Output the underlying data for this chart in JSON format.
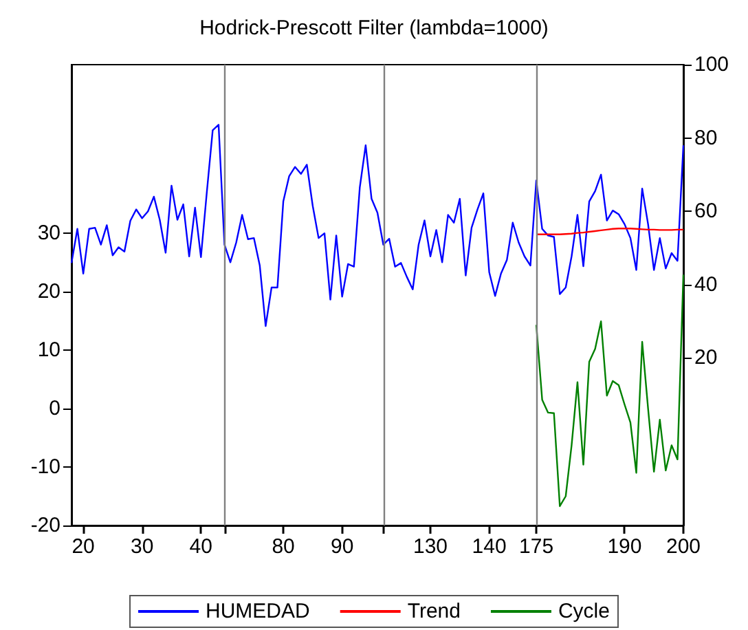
{
  "chart_data": {
    "type": "line",
    "title": "Hodrick-Prescott Filter (lambda=1000)",
    "categories": [
      null,
      null,
      "20",
      null,
      null,
      null,
      null,
      null,
      null,
      null,
      null,
      null,
      "30",
      null,
      null,
      null,
      null,
      null,
      null,
      null,
      null,
      null,
      "40",
      null,
      null,
      null,
      null,
      null,
      null,
      null,
      null,
      null,
      null,
      null,
      null,
      null,
      "80",
      null,
      null,
      null,
      null,
      null,
      null,
      null,
      null,
      null,
      "90",
      null,
      null,
      null,
      null,
      null,
      null,
      null,
      null,
      null,
      null,
      null,
      null,
      null,
      null,
      "130",
      null,
      null,
      null,
      null,
      null,
      null,
      null,
      null,
      null,
      "140",
      null,
      null,
      null,
      null,
      null,
      null,
      null,
      "175",
      null,
      null,
      null,
      null,
      null,
      null,
      null,
      null,
      null,
      null,
      null,
      null,
      null,
      null,
      "190",
      null,
      null,
      null,
      null,
      null,
      null,
      null,
      null,
      null,
      "200"
    ],
    "series": [
      {
        "name": "HUMEDAD",
        "color": "#0000ff",
        "axis": "y2",
        "values": [
          45.9,
          55.2,
          43.0,
          55.2,
          55.5,
          50.9,
          56.2,
          48.0,
          50.2,
          49.0,
          57.4,
          60.5,
          58.1,
          60.0,
          64.0,
          57.7,
          48.7,
          67.0,
          57.7,
          61.9,
          47.7,
          61.0,
          47.5,
          65.2,
          82.1,
          83.6,
          50.9,
          46.1,
          51.5,
          59.0,
          52.4,
          52.7,
          45.2,
          28.7,
          39.2,
          39.2,
          62.7,
          69.6,
          72.1,
          70.2,
          72.7,
          61.5,
          52.7,
          54.0,
          35.9,
          53.4,
          36.7,
          45.6,
          44.9,
          66.5,
          78.0,
          63.4,
          59.6,
          50.9,
          52.5,
          44.9,
          45.9,
          42.1,
          38.7,
          50.9,
          57.5,
          47.7,
          54.9,
          46.1,
          59.0,
          56.9,
          63.4,
          42.5,
          55.5,
          60.5,
          64.9,
          43.4,
          36.9,
          43.0,
          46.7,
          56.9,
          51.5,
          47.7,
          45.2,
          68.4,
          55.2,
          53.4,
          53.0,
          37.4,
          39.2,
          47.7,
          59.0,
          45.0,
          62.7,
          65.5,
          70.0,
          57.5,
          60.2,
          59.2,
          56.5,
          52.7,
          44.0,
          66.2,
          56.5,
          44.0,
          52.7,
          44.4,
          48.6,
          46.5,
          78.0
        ]
      },
      {
        "name": "Trend",
        "color": "#ff0000",
        "axis": "y2",
        "values": [
          null,
          null,
          null,
          null,
          null,
          null,
          null,
          null,
          null,
          null,
          null,
          null,
          null,
          null,
          null,
          null,
          null,
          null,
          null,
          null,
          null,
          null,
          null,
          null,
          null,
          null,
          null,
          null,
          null,
          null,
          null,
          null,
          null,
          null,
          null,
          null,
          null,
          null,
          null,
          null,
          null,
          null,
          null,
          null,
          null,
          null,
          null,
          null,
          null,
          null,
          null,
          null,
          null,
          null,
          null,
          null,
          null,
          null,
          null,
          null,
          null,
          null,
          null,
          null,
          null,
          null,
          null,
          null,
          null,
          null,
          null,
          null,
          null,
          null,
          null,
          null,
          null,
          null,
          null,
          53.7,
          53.7,
          53.7,
          53.7,
          53.7,
          53.8,
          53.9,
          54.1,
          54.2,
          54.4,
          54.6,
          54.8,
          55.0,
          55.2,
          55.3,
          55.3,
          55.3,
          55.2,
          55.1,
          55.0,
          55.0,
          54.9,
          54.9,
          54.9,
          55.0,
          55.0
        ]
      },
      {
        "name": "Cycle",
        "color": "#008000",
        "axis": "y",
        "values": [
          null,
          null,
          null,
          null,
          null,
          null,
          null,
          null,
          null,
          null,
          null,
          null,
          null,
          null,
          null,
          null,
          null,
          null,
          null,
          null,
          null,
          null,
          null,
          null,
          null,
          null,
          null,
          null,
          null,
          null,
          null,
          null,
          null,
          null,
          null,
          null,
          null,
          null,
          null,
          null,
          null,
          null,
          null,
          null,
          null,
          null,
          null,
          null,
          null,
          null,
          null,
          null,
          null,
          null,
          null,
          null,
          null,
          null,
          null,
          null,
          null,
          null,
          null,
          null,
          null,
          null,
          null,
          null,
          null,
          null,
          null,
          null,
          null,
          null,
          null,
          null,
          null,
          null,
          null,
          14.3,
          1.5,
          -0.7,
          -0.8,
          -16.7,
          -15.0,
          -6.3,
          4.5,
          -9.6,
          8.0,
          10.2,
          14.9,
          2.2,
          4.7,
          4.0,
          0.7,
          -2.4,
          -11.0,
          11.4,
          0.0,
          -10.8,
          -1.9,
          -10.6,
          -6.3,
          -8.7,
          22.9
        ]
      }
    ],
    "ylim": [
      -20,
      58.8
    ],
    "yticks": [
      -20,
      -10,
      0,
      10,
      20,
      30
    ],
    "y2lim": [
      -25.7,
      100
    ],
    "y2ticks": [
      20,
      40,
      60,
      80,
      100
    ],
    "ref_lines": [
      {
        "axis": "x",
        "value": "175",
        "color": "#808080"
      }
    ],
    "grid": false,
    "legend": "bottom",
    "marker": "none",
    "line_style": "solid"
  }
}
